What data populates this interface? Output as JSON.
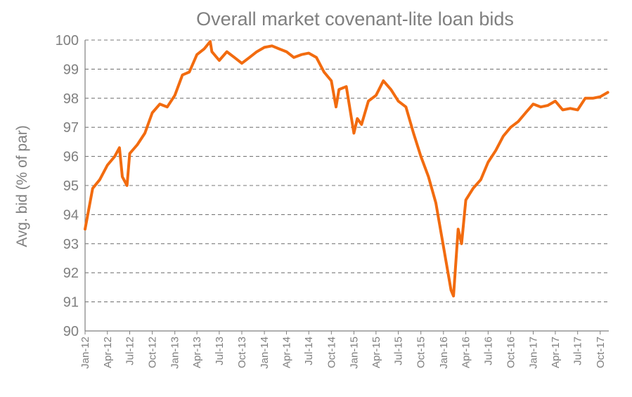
{
  "chart_data": {
    "type": "line",
    "title": "Overall market covenant-lite loan bids",
    "xlabel": "",
    "ylabel": "Avg. bid (% of par)",
    "ylim": [
      90,
      100
    ],
    "yticks": [
      "90",
      "91",
      "92",
      "93",
      "94",
      "95",
      "96",
      "97",
      "98",
      "99",
      "100"
    ],
    "xtick_labels": [
      "Jan-12",
      "Apr-12",
      "Jul-12",
      "Oct-12",
      "Jan-13",
      "Apr-13",
      "Jul-13",
      "Oct-13",
      "Jan-14",
      "Apr-14",
      "Jul-14",
      "Oct-14",
      "Jan-15",
      "Apr-15",
      "Jul-15",
      "Oct-15",
      "Jan-16",
      "Apr-16",
      "Jul-16",
      "Oct-16",
      "Jan-17",
      "Apr-17",
      "Jul-17",
      "Oct-17"
    ],
    "grid": "horizontal dashed",
    "color": "#f26b0f",
    "series": [
      {
        "x": [
          "2012-01",
          "2012-02",
          "2012-03",
          "2012-04",
          "2012-05",
          "2012-05-20",
          "2012-06",
          "2012-06-20",
          "2012-07",
          "2012-08",
          "2012-09",
          "2012-10",
          "2012-11",
          "2012-12",
          "2013-01",
          "2013-02",
          "2013-03",
          "2013-04",
          "2013-05",
          "2013-05-25",
          "2013-06",
          "2013-07",
          "2013-08",
          "2013-09",
          "2013-10",
          "2013-11",
          "2013-12",
          "2014-01",
          "2014-02",
          "2014-03",
          "2014-04",
          "2014-05",
          "2014-06",
          "2014-07",
          "2014-08",
          "2014-09",
          "2014-10",
          "2014-10-20",
          "2014-11",
          "2014-12",
          "2015-01",
          "2015-01-15",
          "2015-02",
          "2015-03",
          "2015-04",
          "2015-05",
          "2015-06",
          "2015-07",
          "2015-08",
          "2015-09",
          "2015-10",
          "2015-11",
          "2015-12",
          "2016-01",
          "2016-02",
          "2016-02-11",
          "2016-03",
          "2016-03-15",
          "2016-04",
          "2016-05",
          "2016-06",
          "2016-07",
          "2016-08",
          "2016-09",
          "2016-10",
          "2016-11",
          "2016-12",
          "2017-01",
          "2017-02",
          "2017-03",
          "2017-04",
          "2017-05",
          "2017-06",
          "2017-07",
          "2017-08",
          "2017-09",
          "2017-10",
          "2017-11"
        ],
        "values": [
          93.5,
          94.9,
          95.2,
          95.7,
          96.0,
          96.3,
          95.3,
          95.0,
          96.1,
          96.4,
          96.8,
          97.5,
          97.8,
          97.7,
          98.1,
          98.8,
          98.9,
          99.5,
          99.7,
          99.95,
          99.6,
          99.3,
          99.6,
          99.4,
          99.2,
          99.4,
          99.6,
          99.75,
          99.8,
          99.7,
          99.6,
          99.4,
          99.5,
          99.55,
          99.4,
          98.9,
          98.6,
          97.7,
          98.3,
          98.4,
          96.8,
          97.3,
          97.1,
          97.9,
          98.1,
          98.6,
          98.3,
          97.9,
          97.7,
          96.8,
          96.0,
          95.3,
          94.4,
          92.9,
          91.4,
          91.2,
          93.5,
          93.0,
          94.5,
          94.9,
          95.2,
          95.8,
          96.2,
          96.7,
          97.0,
          97.2,
          97.5,
          97.8,
          97.7,
          97.75,
          97.9,
          97.6,
          97.65,
          97.6,
          98.0,
          98.0,
          98.05,
          98.2
        ]
      }
    ]
  }
}
